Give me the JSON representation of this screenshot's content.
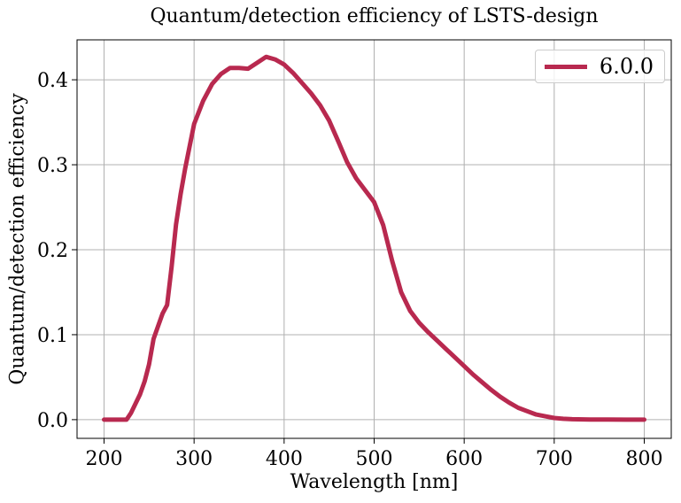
{
  "chart_data": {
    "type": "line",
    "title": "Quantum/detection efficiency of LSTS-design",
    "xlabel": "Wavelength [nm]",
    "ylabel": "Quantum/detection efficiency",
    "xlim": [
      170,
      830
    ],
    "ylim": [
      -0.022,
      0.447
    ],
    "xticks": [
      200,
      300,
      400,
      500,
      600,
      700,
      800
    ],
    "yticks": [
      0.0,
      0.1,
      0.2,
      0.3,
      0.4
    ],
    "ytick_labels": [
      "0.0",
      "0.1",
      "0.2",
      "0.3",
      "0.4"
    ],
    "grid": true,
    "legend_position": "top-right",
    "series": [
      {
        "name": "6.0.0",
        "color": "#b8294f",
        "x": [
          200,
          210,
          220,
          225,
          230,
          240,
          245,
          250,
          255,
          260,
          265,
          270,
          275,
          280,
          285,
          290,
          300,
          310,
          320,
          330,
          340,
          350,
          360,
          370,
          380,
          390,
          400,
          410,
          420,
          430,
          440,
          450,
          460,
          470,
          480,
          490,
          500,
          510,
          520,
          530,
          540,
          550,
          560,
          570,
          580,
          590,
          600,
          610,
          620,
          630,
          640,
          650,
          660,
          670,
          680,
          690,
          700,
          710,
          720,
          740,
          760,
          780,
          800
        ],
        "y": [
          0.0,
          0.0,
          0.0,
          0.0,
          0.008,
          0.03,
          0.045,
          0.065,
          0.095,
          0.11,
          0.125,
          0.135,
          0.18,
          0.23,
          0.265,
          0.295,
          0.348,
          0.375,
          0.395,
          0.407,
          0.414,
          0.414,
          0.413,
          0.42,
          0.427,
          0.424,
          0.418,
          0.408,
          0.396,
          0.384,
          0.37,
          0.352,
          0.328,
          0.303,
          0.284,
          0.27,
          0.256,
          0.229,
          0.187,
          0.15,
          0.128,
          0.114,
          0.103,
          0.093,
          0.083,
          0.073,
          0.063,
          0.053,
          0.044,
          0.035,
          0.027,
          0.02,
          0.014,
          0.01,
          0.006,
          0.004,
          0.002,
          0.001,
          0.0005,
          0.0002,
          0.0001,
          0.0,
          0.0
        ]
      }
    ]
  }
}
